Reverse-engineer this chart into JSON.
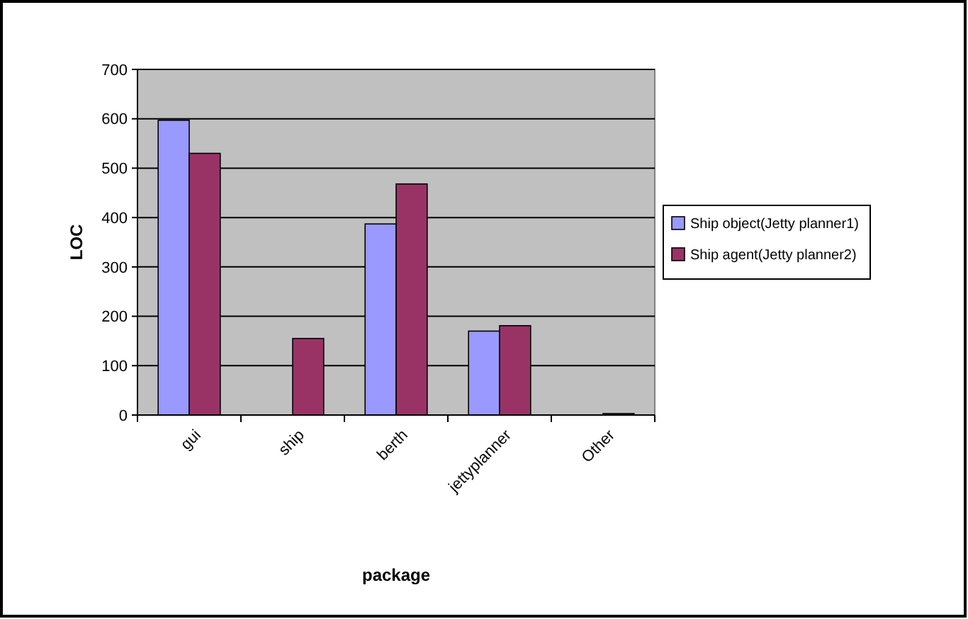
{
  "chart_data": {
    "type": "bar",
    "xlabel": "package",
    "ylabel": "LOC",
    "categories": [
      "gui",
      "ship",
      "berth",
      "jettyplanner",
      "Other"
    ],
    "series": [
      {
        "name": "Ship object(Jetty planner1)",
        "color": "#9999ff",
        "values": [
          597,
          0,
          387,
          170,
          null
        ]
      },
      {
        "name": "Ship agent(Jetty planner2)",
        "color": "#993366",
        "values": [
          530,
          155,
          468,
          181,
          3
        ]
      }
    ],
    "ylim": [
      0,
      700
    ],
    "yticks": [
      0,
      100,
      200,
      300,
      400,
      500,
      600,
      700
    ],
    "grid": "y",
    "legend": "right"
  }
}
